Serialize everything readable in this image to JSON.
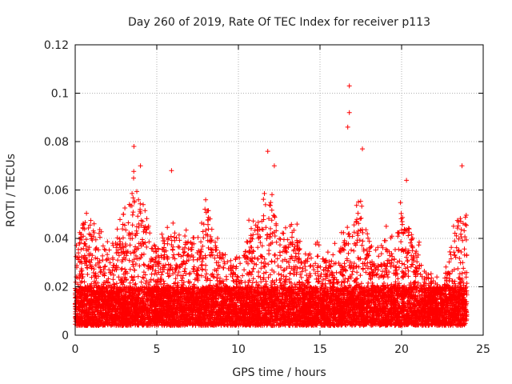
{
  "chart_data": {
    "type": "scatter",
    "title": "Day 260 of 2019, Rate Of TEC Index for receiver p113",
    "xlabel": "GPS time / hours",
    "ylabel": "ROTI / TECUs",
    "xlim": [
      0,
      25
    ],
    "ylim": [
      0,
      0.12
    ],
    "x_ticks": [
      0,
      5,
      10,
      15,
      20,
      25
    ],
    "x_tick_labels": [
      "0",
      "5",
      "10",
      "15",
      "20",
      "25"
    ],
    "y_ticks": [
      0,
      0.02,
      0.04,
      0.06,
      0.08,
      0.1,
      0.12
    ],
    "y_tick_labels": [
      "0",
      "0.02",
      "0.04",
      "0.06",
      "0.08",
      "0.1",
      "0.12"
    ],
    "grid": true,
    "marker": "+",
    "marker_color": "#ff0000",
    "data_range_hours": [
      0,
      24
    ],
    "dense_band": [
      0.004,
      0.02
    ],
    "notable_points": [
      {
        "x": 3.6,
        "y": 0.078
      },
      {
        "x": 4.0,
        "y": 0.07
      },
      {
        "x": 5.9,
        "y": 0.068
      },
      {
        "x": 11.8,
        "y": 0.076
      },
      {
        "x": 12.2,
        "y": 0.07
      },
      {
        "x": 16.8,
        "y": 0.103
      },
      {
        "x": 16.8,
        "y": 0.092
      },
      {
        "x": 16.7,
        "y": 0.086
      },
      {
        "x": 17.6,
        "y": 0.077
      },
      {
        "x": 20.3,
        "y": 0.064
      },
      {
        "x": 23.7,
        "y": 0.07
      }
    ],
    "envelope": [
      {
        "x": 0.0,
        "ymax": 0.035
      },
      {
        "x": 0.5,
        "ymax": 0.048
      },
      {
        "x": 1.0,
        "ymax": 0.045
      },
      {
        "x": 1.5,
        "ymax": 0.038
      },
      {
        "x": 2.0,
        "ymax": 0.035
      },
      {
        "x": 2.5,
        "ymax": 0.04
      },
      {
        "x": 3.0,
        "ymax": 0.045
      },
      {
        "x": 3.5,
        "ymax": 0.06
      },
      {
        "x": 4.0,
        "ymax": 0.055
      },
      {
        "x": 4.5,
        "ymax": 0.045
      },
      {
        "x": 5.0,
        "ymax": 0.035
      },
      {
        "x": 5.5,
        "ymax": 0.04
      },
      {
        "x": 6.0,
        "ymax": 0.042
      },
      {
        "x": 6.5,
        "ymax": 0.035
      },
      {
        "x": 7.0,
        "ymax": 0.04
      },
      {
        "x": 7.5,
        "ymax": 0.035
      },
      {
        "x": 8.0,
        "ymax": 0.05
      },
      {
        "x": 8.5,
        "ymax": 0.042
      },
      {
        "x": 9.0,
        "ymax": 0.032
      },
      {
        "x": 9.5,
        "ymax": 0.03
      },
      {
        "x": 10.0,
        "ymax": 0.028
      },
      {
        "x": 10.5,
        "ymax": 0.04
      },
      {
        "x": 11.0,
        "ymax": 0.045
      },
      {
        "x": 11.5,
        "ymax": 0.05
      },
      {
        "x": 12.0,
        "ymax": 0.055
      },
      {
        "x": 12.5,
        "ymax": 0.045
      },
      {
        "x": 13.0,
        "ymax": 0.04
      },
      {
        "x": 13.5,
        "ymax": 0.045
      },
      {
        "x": 14.0,
        "ymax": 0.035
      },
      {
        "x": 14.5,
        "ymax": 0.032
      },
      {
        "x": 15.0,
        "ymax": 0.035
      },
      {
        "x": 15.5,
        "ymax": 0.03
      },
      {
        "x": 16.0,
        "ymax": 0.035
      },
      {
        "x": 16.5,
        "ymax": 0.04
      },
      {
        "x": 17.0,
        "ymax": 0.045
      },
      {
        "x": 17.5,
        "ymax": 0.05
      },
      {
        "x": 18.0,
        "ymax": 0.04
      },
      {
        "x": 18.5,
        "ymax": 0.035
      },
      {
        "x": 19.0,
        "ymax": 0.04
      },
      {
        "x": 19.5,
        "ymax": 0.035
      },
      {
        "x": 20.0,
        "ymax": 0.05
      },
      {
        "x": 20.5,
        "ymax": 0.045
      },
      {
        "x": 21.0,
        "ymax": 0.035
      },
      {
        "x": 21.5,
        "ymax": 0.025
      },
      {
        "x": 22.0,
        "ymax": 0.022
      },
      {
        "x": 22.5,
        "ymax": 0.02
      },
      {
        "x": 23.0,
        "ymax": 0.035
      },
      {
        "x": 23.5,
        "ymax": 0.05
      },
      {
        "x": 24.0,
        "ymax": 0.045
      }
    ]
  }
}
